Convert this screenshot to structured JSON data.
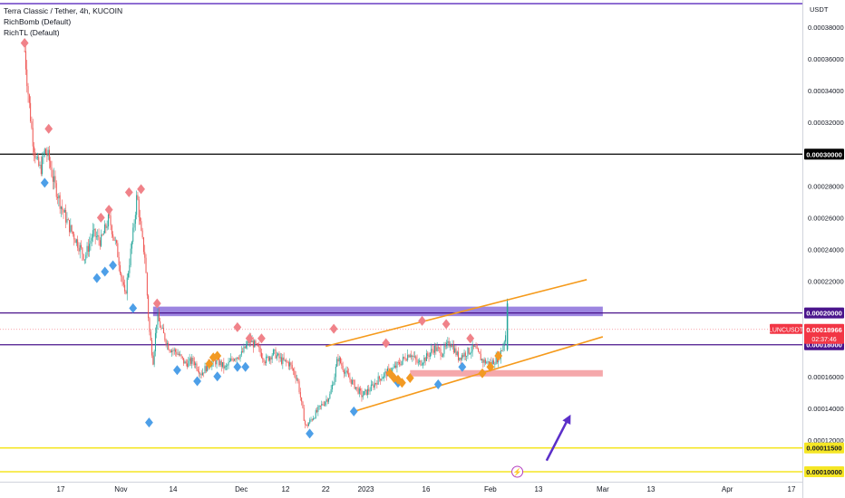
{
  "legend": {
    "title": "Terra Classic / Tether, 4h, KUCOIN",
    "indicator_1": "RichBomb (Default)",
    "indicator_2": "RichTL (Default)"
  },
  "chart_data": {
    "type": "candlestick",
    "title": "Terra Classic / Tether, 4h, KUCOIN",
    "y_unit": "USDT",
    "ylim": [
      9.3e-05,
      0.000406
    ],
    "y_ticks": [
      {
        "value": 0.00012,
        "label": "0.00012000"
      },
      {
        "value": 0.00014,
        "label": "0.00014000"
      },
      {
        "value": 0.00016,
        "label": "0.00016000"
      },
      {
        "value": 0.00022,
        "label": "0.00022000"
      },
      {
        "value": 0.00024,
        "label": "0.00024000"
      },
      {
        "value": 0.00026,
        "label": "0.00026000"
      },
      {
        "value": 0.00028,
        "label": "0.00028000"
      },
      {
        "value": 0.00032,
        "label": "0.00032000"
      },
      {
        "value": 0.00034,
        "label": "0.00034000"
      },
      {
        "value": 0.00036,
        "label": "0.00036000"
      },
      {
        "value": 0.00038,
        "label": "0.00038000"
      }
    ],
    "x_ticks": [
      {
        "label": "17",
        "date": "2022-10-17"
      },
      {
        "label": "Nov",
        "date": "2022-11-01"
      },
      {
        "label": "14",
        "date": "2022-11-14"
      },
      {
        "label": "Dec",
        "date": "2022-12-01"
      },
      {
        "label": "12",
        "date": "2022-12-12"
      },
      {
        "label": "22",
        "date": "2022-12-22"
      },
      {
        "label": "2023",
        "date": "2023-01-01"
      },
      {
        "label": "16",
        "date": "2023-01-16"
      },
      {
        "label": "Feb",
        "date": "2023-02-01"
      },
      {
        "label": "13",
        "date": "2023-02-13"
      },
      {
        "label": "Mar",
        "date": "2023-03-01"
      },
      {
        "label": "13",
        "date": "2023-03-13"
      },
      {
        "label": "Apr",
        "date": "2023-04-01"
      },
      {
        "label": "17",
        "date": "2023-04-17"
      }
    ],
    "price_path": [
      [
        "2022-10-08",
        0.000365
      ],
      [
        "2022-10-09",
        0.000335
      ],
      [
        "2022-10-10",
        0.00031
      ],
      [
        "2022-10-11",
        0.000295
      ],
      [
        "2022-10-12",
        0.00029
      ],
      [
        "2022-10-13",
        0.000302
      ],
      [
        "2022-10-14",
        0.000298
      ],
      [
        "2022-10-15",
        0.000285
      ],
      [
        "2022-10-17",
        0.000268
      ],
      [
        "2022-10-19",
        0.000255
      ],
      [
        "2022-10-21",
        0.000245
      ],
      [
        "2022-10-23",
        0.000235
      ],
      [
        "2022-10-25",
        0.00025
      ],
      [
        "2022-10-27",
        0.000245
      ],
      [
        "2022-10-29",
        0.00026
      ],
      [
        "2022-10-31",
        0.00024
      ],
      [
        "2022-11-02",
        0.00021
      ],
      [
        "2022-11-04",
        0.00025
      ],
      [
        "2022-11-05",
        0.000275
      ],
      [
        "2022-11-06",
        0.00025
      ],
      [
        "2022-11-07",
        0.000235
      ],
      [
        "2022-11-08",
        0.00019
      ],
      [
        "2022-11-09",
        0.00017
      ],
      [
        "2022-11-10",
        0.000198
      ],
      [
        "2022-11-11",
        0.00019
      ],
      [
        "2022-11-13",
        0.000178
      ],
      [
        "2022-11-15",
        0.000175
      ],
      [
        "2022-11-17",
        0.000168
      ],
      [
        "2022-11-19",
        0.00017
      ],
      [
        "2022-11-21",
        0.000162
      ],
      [
        "2022-11-23",
        0.000168
      ],
      [
        "2022-11-25",
        0.00017
      ],
      [
        "2022-11-27",
        0.000165
      ],
      [
        "2022-11-29",
        0.000172
      ],
      [
        "2022-12-01",
        0.000174
      ],
      [
        "2022-12-03",
        0.000183
      ],
      [
        "2022-12-05",
        0.000178
      ],
      [
        "2022-12-07",
        0.00017
      ],
      [
        "2022-12-09",
        0.000175
      ],
      [
        "2022-12-11",
        0.00017
      ],
      [
        "2022-12-13",
        0.000168
      ],
      [
        "2022-12-15",
        0.000158
      ],
      [
        "2022-12-16",
        0.000142
      ],
      [
        "2022-12-17",
        0.000128
      ],
      [
        "2022-12-19",
        0.000135
      ],
      [
        "2022-12-21",
        0.000142
      ],
      [
        "2022-12-23",
        0.000148
      ],
      [
        "2022-12-24",
        0.000158
      ],
      [
        "2022-12-25",
        0.000172
      ],
      [
        "2022-12-27",
        0.000162
      ],
      [
        "2022-12-29",
        0.000155
      ],
      [
        "2022-12-31",
        0.000148
      ],
      [
        "2023-01-02",
        0.000152
      ],
      [
        "2023-01-04",
        0.000158
      ],
      [
        "2023-01-06",
        0.000162
      ],
      [
        "2023-01-08",
        0.000165
      ],
      [
        "2023-01-10",
        0.00017
      ],
      [
        "2023-01-12",
        0.000175
      ],
      [
        "2023-01-14",
        0.000168
      ],
      [
        "2023-01-16",
        0.000172
      ],
      [
        "2023-01-18",
        0.000178
      ],
      [
        "2023-01-20",
        0.000175
      ],
      [
        "2023-01-22",
        0.000182
      ],
      [
        "2023-01-24",
        0.000172
      ],
      [
        "2023-01-26",
        0.000175
      ],
      [
        "2023-01-28",
        0.000178
      ],
      [
        "2023-01-30",
        0.00017
      ],
      [
        "2023-02-01",
        0.000168
      ],
      [
        "2023-02-03",
        0.000172
      ],
      [
        "2023-02-04",
        0.000178
      ],
      [
        "2023-02-05",
        0.000189
      ]
    ],
    "spike": {
      "date": "2023-02-05",
      "high": 0.000209
    },
    "horizontal_levels": [
      {
        "value": 0.0003,
        "label": "0.00030000",
        "color": "#000000"
      },
      {
        "value": 0.0002,
        "label": "0.00020000",
        "color": "#4a148c"
      },
      {
        "value": 0.00018,
        "label": "0.00018000",
        "color": "#4a148c"
      },
      {
        "value": 0.000115,
        "label": "0.00011500",
        "color": "#f5e625"
      },
      {
        "value": 0.0001,
        "label": "0.00010000",
        "color": "#f5e625"
      }
    ],
    "current_price": {
      "symbol": "LUNCUSDT",
      "value": "0.00018966",
      "countdown": "02:37:46",
      "color": "#f23645"
    },
    "zones": [
      {
        "from_date": "2022-11-09",
        "to_date": "2023-03-01",
        "low": 0.000198,
        "high": 0.000204,
        "color": "#7b5cd6"
      },
      {
        "from_date": "2023-01-12",
        "to_date": "2023-03-01",
        "low": 0.00016,
        "high": 0.000164,
        "color": "#f28b8f"
      }
    ],
    "trend_channel": {
      "color": "#f59a1b",
      "upper": [
        [
          "2022-12-22",
          0.000179
        ],
        [
          "2023-02-25",
          0.000221
        ]
      ],
      "lower": [
        [
          "2022-12-29",
          0.000138
        ],
        [
          "2023-03-01",
          0.000185
        ]
      ]
    },
    "sell_signals": [
      [
        "2022-10-08",
        0.00037
      ],
      [
        "2022-10-14",
        0.000316
      ],
      [
        "2022-10-27",
        0.00026
      ],
      [
        "2022-10-29",
        0.000265
      ],
      [
        "2022-11-03",
        0.000276
      ],
      [
        "2022-11-06",
        0.000278
      ],
      [
        "2022-11-10",
        0.000206
      ],
      [
        "2022-11-30",
        0.000191
      ],
      [
        "2022-12-03",
        0.000184
      ],
      [
        "2022-12-06",
        0.000184
      ],
      [
        "2022-12-24",
        0.00019
      ],
      [
        "2023-01-06",
        0.000181
      ],
      [
        "2023-01-15",
        0.000195
      ],
      [
        "2023-01-21",
        0.000193
      ],
      [
        "2023-01-27",
        0.000184
      ]
    ],
    "buy_signals": [
      [
        "2022-10-13",
        0.000282
      ],
      [
        "2022-10-26",
        0.000222
      ],
      [
        "2022-10-28",
        0.000226
      ],
      [
        "2022-10-30",
        0.00023
      ],
      [
        "2022-11-04",
        0.000203
      ],
      [
        "2022-11-08",
        0.000131
      ],
      [
        "2022-11-15",
        0.000164
      ],
      [
        "2022-11-20",
        0.000157
      ],
      [
        "2022-11-25",
        0.00016
      ],
      [
        "2022-11-30",
        0.000166
      ],
      [
        "2022-12-02",
        0.000166
      ],
      [
        "2022-12-18",
        0.000124
      ],
      [
        "2022-12-29",
        0.000138
      ],
      [
        "2023-01-09",
        0.000156
      ],
      [
        "2023-01-19",
        0.000155
      ],
      [
        "2023-01-25",
        0.000166
      ]
    ],
    "neutral_signals": [
      [
        "2022-11-23",
        0.000168
      ],
      [
        "2022-11-24",
        0.000172
      ],
      [
        "2022-11-25",
        0.000173
      ],
      [
        "2023-01-07",
        0.000162
      ],
      [
        "2023-01-08",
        0.000159
      ],
      [
        "2023-01-09",
        0.000158
      ],
      [
        "2023-01-10",
        0.000156
      ],
      [
        "2023-01-12",
        0.000159
      ],
      [
        "2023-01-30",
        0.000162
      ],
      [
        "2023-02-01",
        0.000166
      ],
      [
        "2023-02-03",
        0.000173
      ]
    ],
    "arrow": {
      "from": [
        "2023-02-15",
        0.000107
      ],
      "to": [
        "2023-02-21",
        0.000136
      ],
      "color": "#5b2fc9"
    },
    "flag_marker": {
      "date": "2023-02-05",
      "glyph": "⚡"
    }
  }
}
